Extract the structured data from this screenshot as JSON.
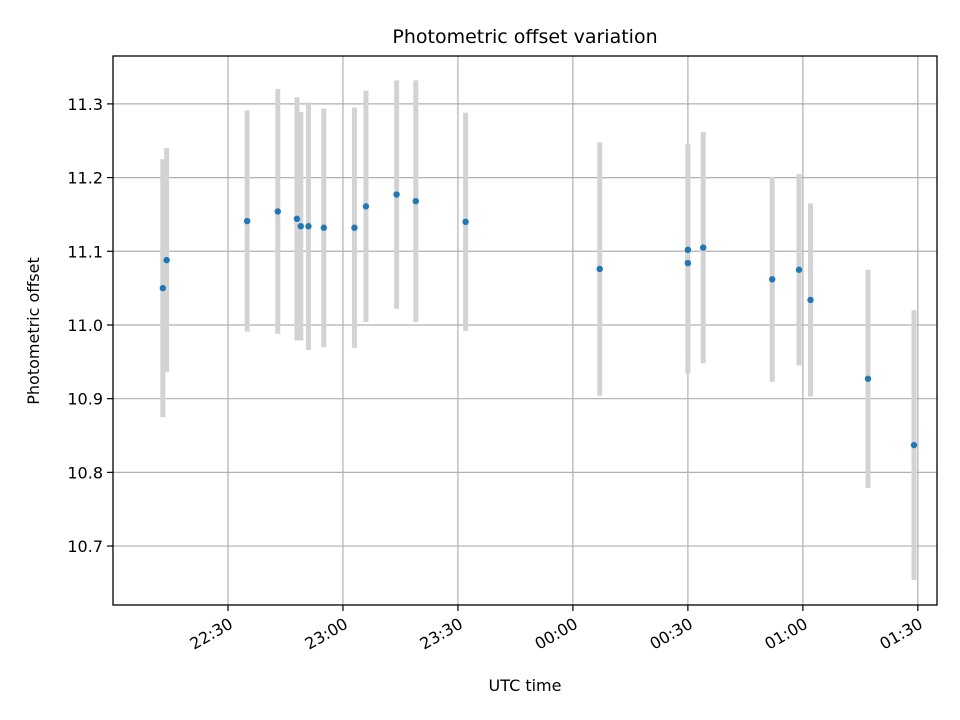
{
  "chart_data": {
    "type": "scatter",
    "title": "Photometric offset variation",
    "xlabel": "UTC time",
    "ylabel": "Photometric offset",
    "x_axis_kind": "time",
    "x_ticks": [
      "22:30",
      "23:00",
      "23:30",
      "00:00",
      "00:30",
      "01:00",
      "01:30"
    ],
    "xlim": [
      "22:00",
      "01:35"
    ],
    "y_ticks": [
      "10.7",
      "10.8",
      "10.9",
      "11.0",
      "11.1",
      "11.2",
      "11.3"
    ],
    "ylim": [
      10.62,
      11.365
    ],
    "grid": true,
    "legend": false,
    "colors": {
      "point": "#1f77b4",
      "errorbar": "#d3d3d3",
      "grid": "#b0b0b0"
    },
    "series": [
      {
        "points": [
          {
            "x": "22:13",
            "y": 11.05,
            "err": 0.175
          },
          {
            "x": "22:14",
            "y": 11.088,
            "err": 0.152
          },
          {
            "x": "22:35",
            "y": 11.141,
            "err": 0.15
          },
          {
            "x": "22:43",
            "y": 11.154,
            "err": 0.166
          },
          {
            "x": "22:48",
            "y": 11.144,
            "err": 0.165
          },
          {
            "x": "22:49",
            "y": 11.134,
            "err": 0.155
          },
          {
            "x": "22:51",
            "y": 11.134,
            "err": 0.168
          },
          {
            "x": "22:55",
            "y": 11.132,
            "err": 0.162
          },
          {
            "x": "23:03",
            "y": 11.132,
            "err": 0.163
          },
          {
            "x": "23:06",
            "y": 11.161,
            "err": 0.157
          },
          {
            "x": "23:14",
            "y": 11.177,
            "err": 0.155
          },
          {
            "x": "23:19",
            "y": 11.168,
            "err": 0.164
          },
          {
            "x": "23:32",
            "y": 11.14,
            "err": 0.148
          },
          {
            "x": "00:07",
            "y": 11.076,
            "err": 0.172
          },
          {
            "x": "00:30",
            "y": 11.102,
            "err": 0.143
          },
          {
            "x": "00:30",
            "y": 11.084,
            "err": 0.15
          },
          {
            "x": "00:34",
            "y": 11.105,
            "err": 0.157
          },
          {
            "x": "00:52",
            "y": 11.062,
            "err": 0.139
          },
          {
            "x": "00:59",
            "y": 11.075,
            "err": 0.13
          },
          {
            "x": "01:02",
            "y": 11.034,
            "err": 0.131
          },
          {
            "x": "01:17",
            "y": 10.927,
            "err": 0.148
          },
          {
            "x": "01:29",
            "y": 10.837,
            "err": 0.183
          }
        ]
      }
    ]
  }
}
